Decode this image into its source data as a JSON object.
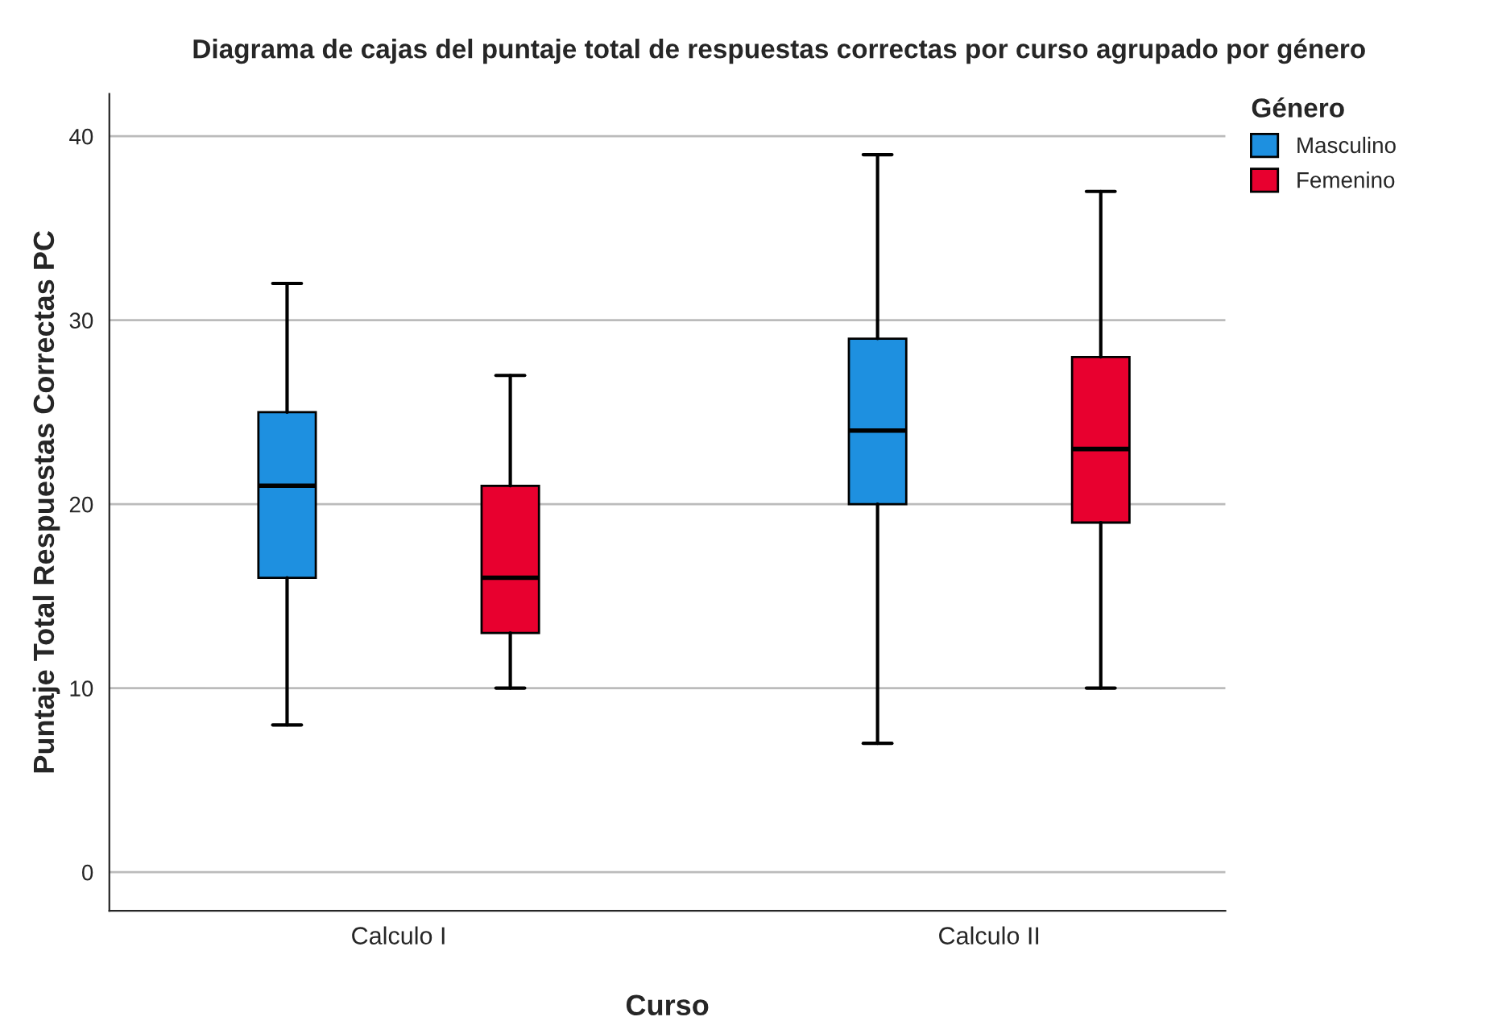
{
  "chart_data": {
    "type": "box",
    "title": "Diagrama de cajas del puntaje total de respuestas correctas por curso agrupado por género",
    "xlabel": "Curso",
    "ylabel": "Puntaje Total Respuestas Correctas PC",
    "legend_title": "Género",
    "categories": [
      "Calculo I",
      "Calculo II"
    ],
    "series": [
      {
        "name": "Masculino",
        "color": "#1e90e0",
        "boxes": [
          {
            "low": 8,
            "q1": 16,
            "median": 21,
            "q3": 25,
            "high": 32
          },
          {
            "low": 7,
            "q1": 20,
            "median": 24,
            "q3": 29,
            "high": 39
          }
        ]
      },
      {
        "name": "Femenino",
        "color": "#e8002f",
        "boxes": [
          {
            "low": 10,
            "q1": 13,
            "median": 16,
            "q3": 21,
            "high": 27
          },
          {
            "low": 10,
            "q1": 19,
            "median": 23,
            "q3": 28,
            "high": 37
          }
        ]
      }
    ],
    "ylim": [
      -2.1,
      42.3
    ],
    "yticks": [
      0,
      10,
      20,
      30,
      40
    ],
    "grid": "y",
    "legend": "top right"
  }
}
